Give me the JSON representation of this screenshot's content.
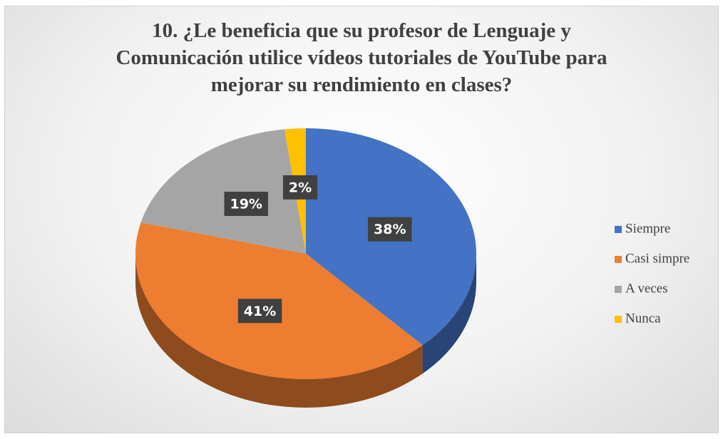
{
  "chart_data": {
    "type": "pie",
    "title": "10. ¿Le beneficia que su profesor de Lenguaje y Comunicación utilice vídeos tutoriales de YouTube para mejorar su rendimiento en clases?",
    "categories": [
      "Siempre",
      "Casi simpre",
      "A veces",
      "Nunca"
    ],
    "values": [
      38,
      41,
      19,
      2
    ],
    "value_labels": [
      "38%",
      "41%",
      "19%",
      "2%"
    ],
    "colors": [
      "#4472c4",
      "#ed7d31",
      "#a5a5a5",
      "#ffc000"
    ],
    "legend": "right"
  }
}
